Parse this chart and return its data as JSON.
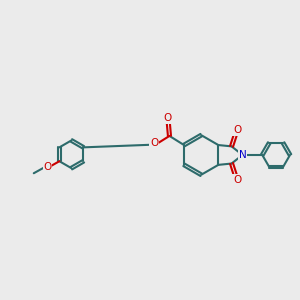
{
  "bg": "#ebebeb",
  "bc": "#2d6b6b",
  "oc": "#cc0000",
  "nc": "#0000cc",
  "lw": 1.5,
  "dbo": 0.055,
  "figsize": [
    3.0,
    3.0
  ],
  "dpi": 100,
  "xlim": [
    0.5,
    9.5
  ],
  "ylim": [
    2.2,
    6.5
  ]
}
